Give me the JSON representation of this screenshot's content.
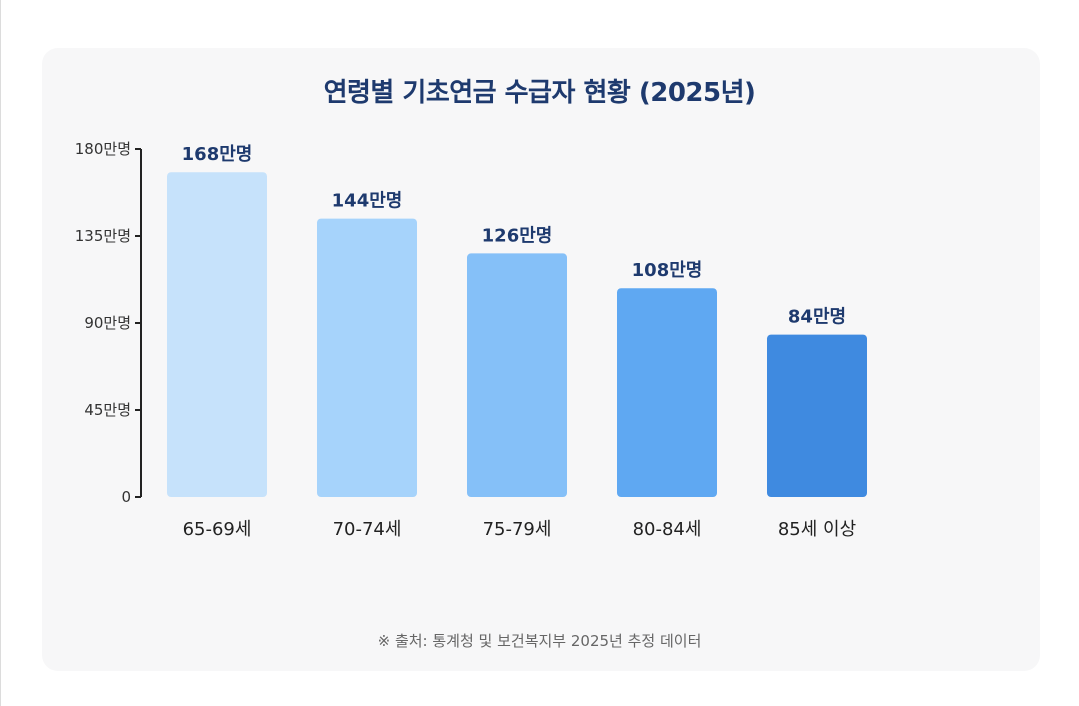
{
  "title": "연령별 기초연금 수급자 현황 (2025년)",
  "footnote": "※ 출처: 통계청 및 보건복지부 2025년 추정 데이터",
  "colors": {
    "title": "#1e3a6e",
    "value_label": "#1e3a6e",
    "bars": [
      "#c6e2fb",
      "#a6d3fb",
      "#85c0f8",
      "#5fa8f2",
      "#3f8ae0"
    ]
  },
  "chart_data": {
    "type": "bar",
    "categories": [
      "65-69세",
      "70-74세",
      "75-79세",
      "80-84세",
      "85세 이상"
    ],
    "values": [
      168,
      144,
      126,
      108,
      84
    ],
    "value_labels": [
      "168만명",
      "144만명",
      "126만명",
      "108만명",
      "84만명"
    ],
    "ylim": [
      0,
      180
    ],
    "yticks": [
      0,
      45,
      90,
      135,
      180
    ],
    "ytick_labels": [
      "0",
      "45만명",
      "90만명",
      "135만명",
      "180만명"
    ],
    "title": "연령별 기초연금 수급자 현황 (2025년)",
    "grid": false
  }
}
